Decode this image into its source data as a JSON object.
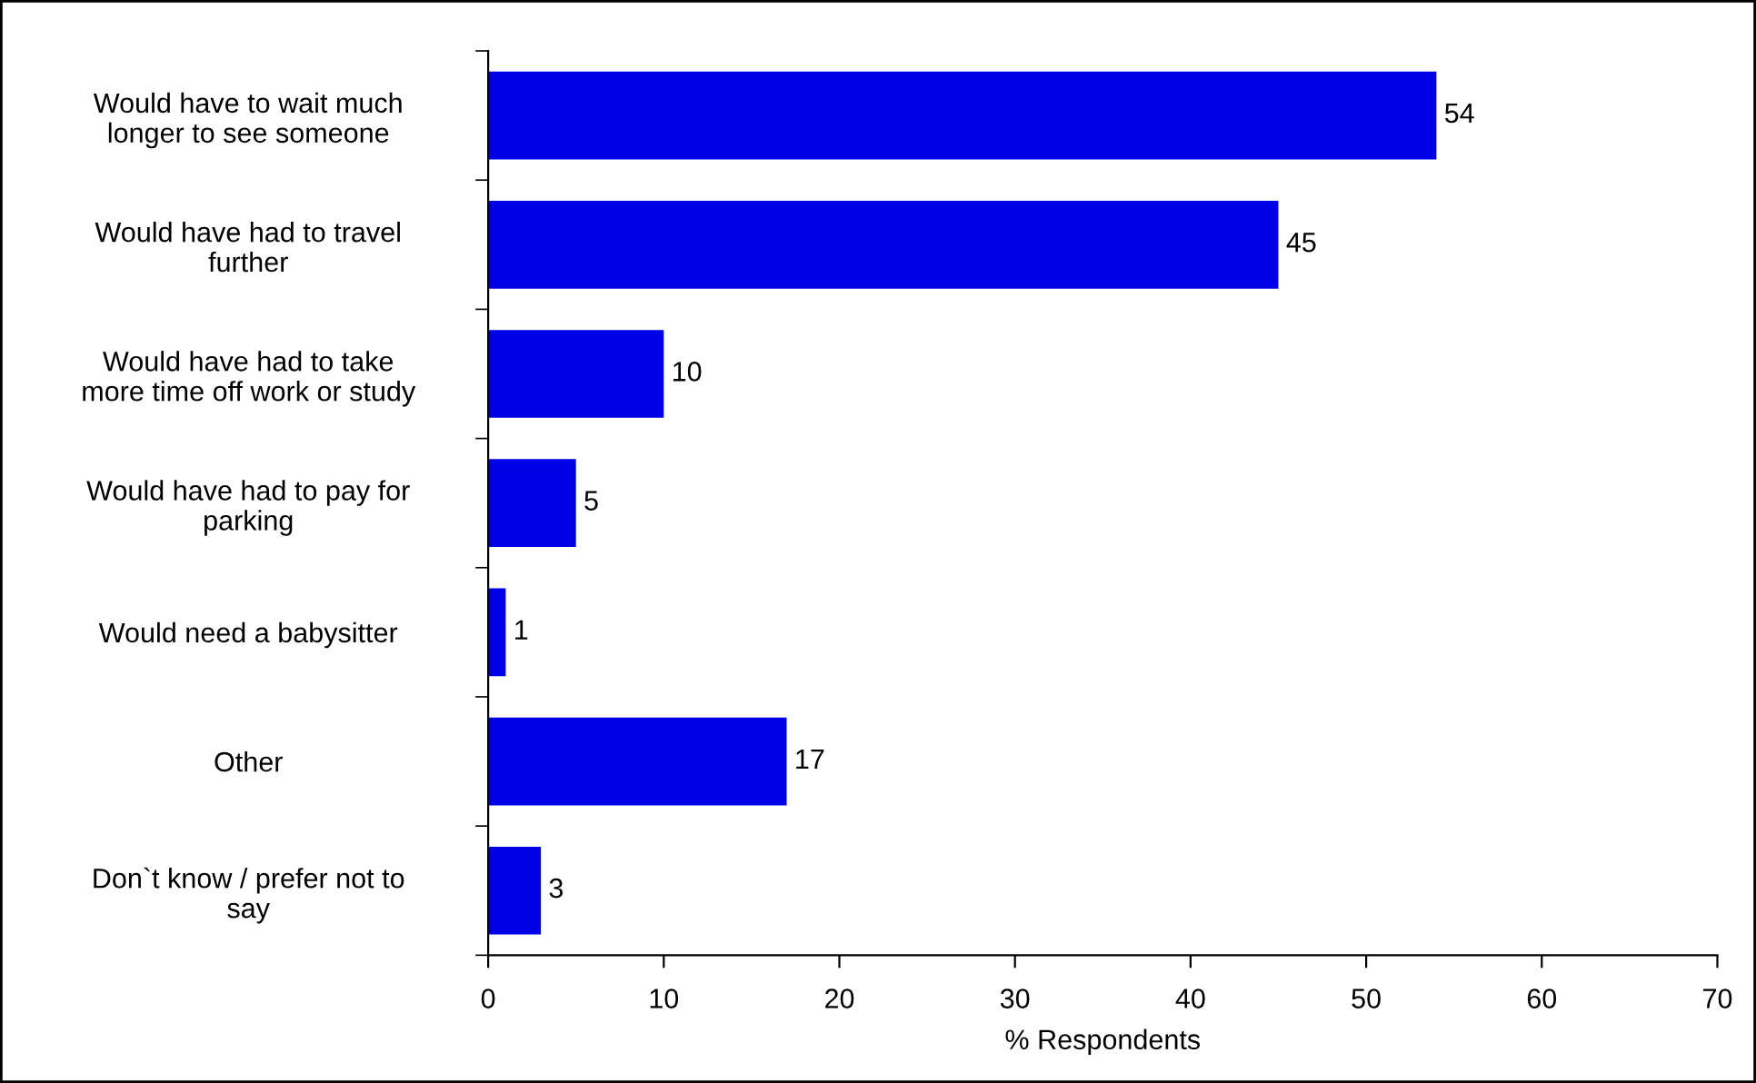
{
  "chart_data": {
    "type": "bar",
    "orientation": "horizontal",
    "xlabel": "% Respondents",
    "categories": [
      "Would have to wait much\nlonger to see someone",
      "Would have had to travel\nfurther",
      "Would have had to take\nmore time off work or study",
      "Would have had to pay for\nparking",
      "Would need a babysitter",
      "Other",
      "Don`t know / prefer not to\nsay"
    ],
    "values": [
      54,
      45,
      10,
      5,
      1,
      17,
      3
    ],
    "color": "#0000e6",
    "xlim": [
      0,
      70
    ],
    "xticks": [
      0,
      10,
      20,
      30,
      40,
      50,
      60,
      70
    ],
    "grid": false,
    "data_labels": true
  }
}
